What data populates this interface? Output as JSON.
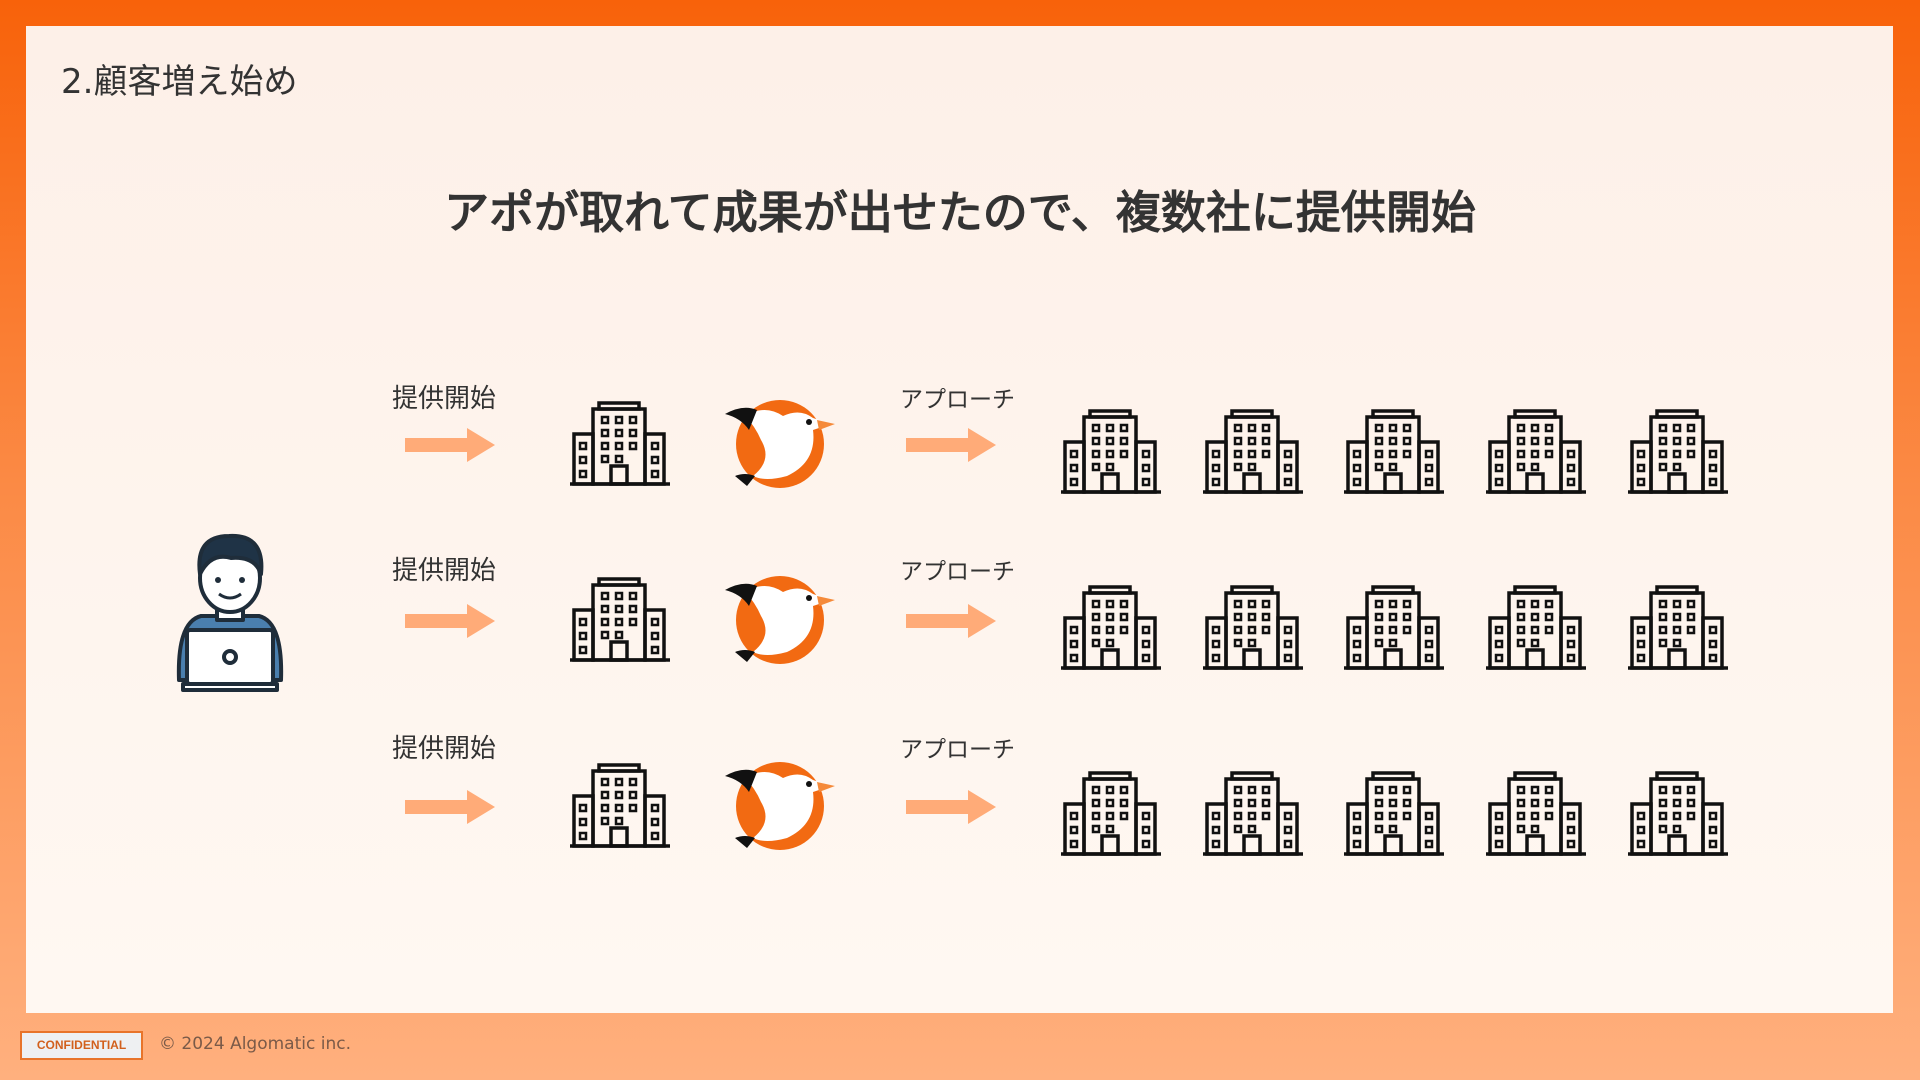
{
  "section_title": "2.顧客増え始め",
  "heading": "アポが取れて成果が出せたので、複数社に提供開始",
  "rows": [
    {
      "start_label": "提供開始",
      "approach_label": "アプローチ",
      "targets": 5
    },
    {
      "start_label": "提供開始",
      "approach_label": "アプローチ",
      "targets": 5
    },
    {
      "start_label": "提供開始",
      "approach_label": "アプローチ",
      "targets": 5
    }
  ],
  "icons": {
    "person": "person-laptop-icon",
    "company": "building-icon",
    "mascot": "bird-logo-icon",
    "arrow": "arrow-right-icon"
  },
  "colors": {
    "accent": "#f8620a",
    "arrow": "#ffab78",
    "person_shirt": "#4a7fae"
  },
  "footer": {
    "badge": "CONFIDENTIAL",
    "copyright": "© 2024 Algomatic inc."
  }
}
